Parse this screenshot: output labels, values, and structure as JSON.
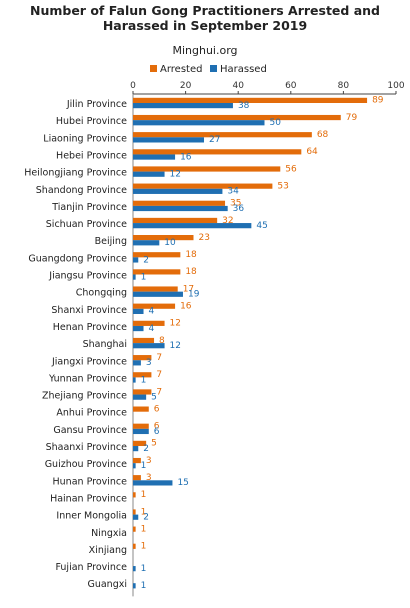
{
  "chart_data": {
    "type": "bar",
    "orientation": "horizontal",
    "title_line1": "Number of Falun Gong Practitioners Arrested and",
    "title_line2": "Harassed in September 2019",
    "subtitle": "Minghui.org",
    "xlim": [
      0,
      100
    ],
    "xticks": [
      0,
      20,
      40,
      60,
      80,
      100
    ],
    "x_axis_position": "top",
    "legend_position": "top",
    "categories": [
      "Jilin Province",
      "Hubei Province",
      "Liaoning Province",
      "Hebei Province",
      "Heilongjiang Province",
      "Shandong Province",
      "Tianjin Province",
      "Sichuan Province",
      "Beijing",
      "Guangdong Province",
      "Jiangsu Province",
      "Chongqing",
      "Shanxi Province",
      "Henan Province",
      "Shanghai",
      "Jiangxi Province",
      "Yunnan Province",
      "Zhejiang Province",
      "Anhui Province",
      "Gansu Province",
      "Shaanxi Province",
      "Guizhou Province",
      "Hunan Province",
      "Hainan Province",
      "Inner Mongolia",
      "Ningxia",
      "Xinjiang",
      "Fujian Province",
      "Guangxi"
    ],
    "series": [
      {
        "name": "Arrested",
        "color": "#E36C0A",
        "values": [
          89,
          79,
          68,
          64,
          56,
          53,
          35,
          32,
          23,
          18,
          18,
          17,
          16,
          12,
          8,
          7,
          7,
          7,
          6,
          6,
          5,
          3,
          3,
          1,
          1,
          1,
          1,
          null,
          null
        ]
      },
      {
        "name": "Harassed",
        "color": "#1F6FB2",
        "values": [
          38,
          50,
          27,
          16,
          12,
          34,
          36,
          45,
          10,
          2,
          1,
          19,
          4,
          4,
          12,
          3,
          1,
          5,
          null,
          6,
          2,
          1,
          15,
          null,
          2,
          null,
          null,
          1,
          1
        ]
      }
    ],
    "grid": false
  }
}
